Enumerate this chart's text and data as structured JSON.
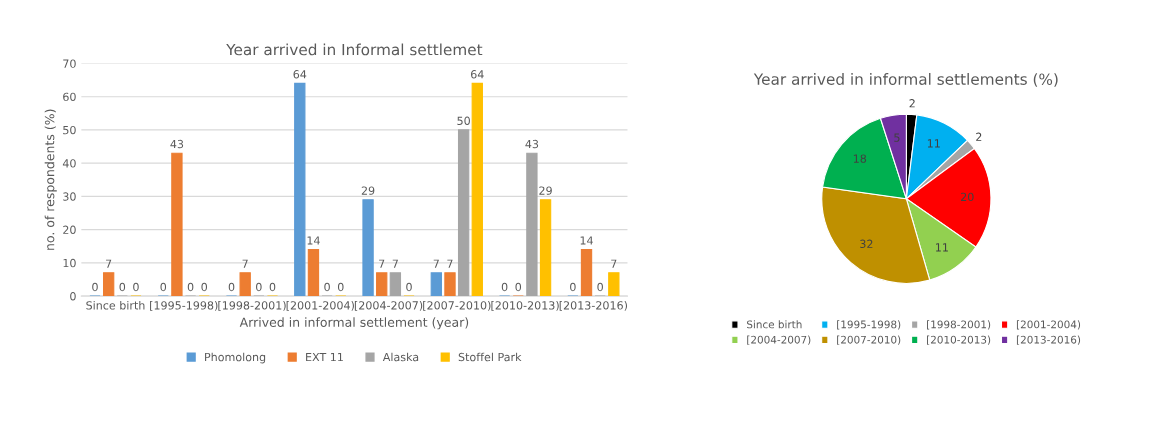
{
  "chart_data": [
    {
      "type": "bar",
      "title": "Year arrived in Informal settlemet",
      "xlabel": "Arrived in informal settlement (year)",
      "ylabel": "no. of respondents (%)",
      "categories": [
        "Since birth",
        "[1995-1998)",
        "[1998-2001)",
        "[2001-2004)",
        "[2004-2007)",
        "[2007-2010)",
        "[2010-2013)",
        "[2013-2016)"
      ],
      "series": [
        {
          "name": "Phomolong",
          "color": "#5b9bd5",
          "values": [
            0,
            0,
            0,
            64,
            29,
            7,
            0,
            0
          ]
        },
        {
          "name": "EXT 11",
          "color": "#ed7d31",
          "values": [
            7,
            43,
            7,
            14,
            7,
            7,
            0,
            14
          ]
        },
        {
          "name": "Alaska",
          "color": "#a5a5a5",
          "values": [
            0,
            0,
            0,
            0,
            7,
            50,
            43,
            0
          ]
        },
        {
          "name": "Stoffel Park",
          "color": "#ffc000",
          "values": [
            0,
            0,
            0,
            0,
            0,
            64,
            29,
            7
          ]
        }
      ],
      "ylim": [
        0,
        70
      ],
      "yticks": [
        0,
        10,
        20,
        30,
        40,
        50,
        60,
        70
      ],
      "grid": "y",
      "legend": "bottom",
      "data_labels": true
    },
    {
      "type": "pie",
      "title": "Year arrived in informal settlements (%)",
      "categories": [
        "Since birth",
        "[1995-1998)",
        "[1998-2001)",
        "[2001-2004)",
        "[2004-2007)",
        "[2007-2010)",
        "[2010-2013)",
        "[2013-2016)"
      ],
      "values": [
        2,
        11,
        2,
        20,
        11,
        32,
        18,
        5
      ],
      "colors": [
        "#000000",
        "#00b0f0",
        "#a5a5a5",
        "#ff0000",
        "#92d050",
        "#bf9000",
        "#00b050",
        "#7030a0"
      ],
      "legend": "bottom",
      "data_labels": true
    }
  ]
}
